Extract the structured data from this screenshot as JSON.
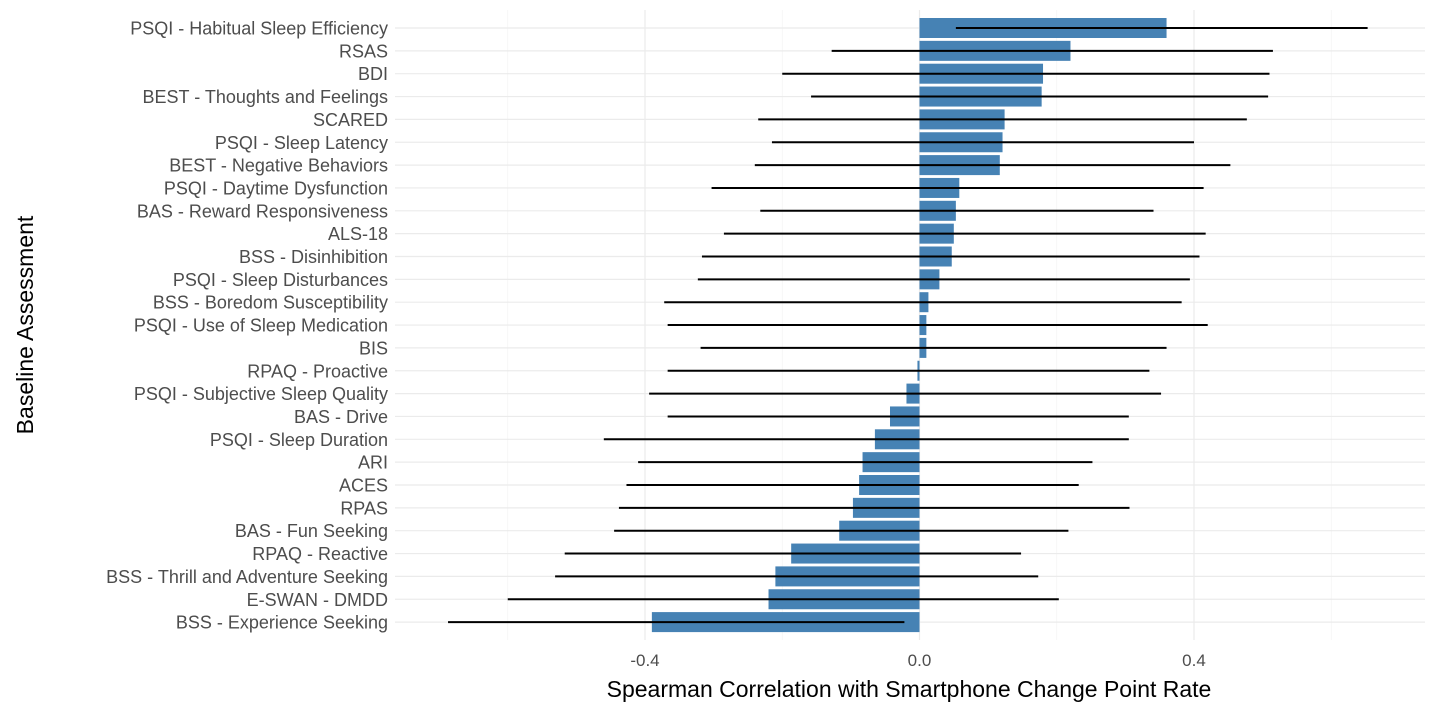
{
  "chart_data": {
    "type": "bar",
    "orientation": "horizontal",
    "xlabel": "Spearman Correlation with Smartphone Change Point Rate",
    "ylabel": "Baseline Assessment",
    "xlim": [
      -0.73,
      0.73
    ],
    "xticks": [
      -0.4,
      0.0,
      0.4
    ],
    "xtick_labels": [
      "-0.4",
      "0.0",
      "0.4"
    ],
    "bar_color": "#4682b4",
    "error_bar_color": "#000000",
    "grid": true,
    "categories": [
      "PSQI - Habitual Sleep Efficiency",
      "RSAS",
      "BDI",
      "BEST - Thoughts and Feelings",
      "SCARED",
      "PSQI - Sleep Latency",
      "BEST - Negative Behaviors",
      "PSQI - Daytime Dysfunction",
      "BAS - Reward Responsiveness",
      "ALS-18",
      "BSS - Disinhibition",
      "PSQI - Sleep Disturbances",
      "BSS - Boredom Susceptibility",
      "PSQI - Use of Sleep Medication",
      "BIS",
      "RPAQ - Proactive",
      "PSQI - Subjective Sleep Quality",
      "BAS - Drive",
      "PSQI - Sleep Duration",
      "ARI",
      "ACES",
      "RPAS",
      "BAS - Fun Seeking",
      "RPAQ - Reactive",
      "BSS - Thrill and Adventure Seeking",
      "E-SWAN - DMDD",
      "BSS - Experience Seeking"
    ],
    "values": [
      0.36,
      0.22,
      0.18,
      0.178,
      0.124,
      0.121,
      0.117,
      0.058,
      0.053,
      0.05,
      0.047,
      0.029,
      0.013,
      0.01,
      0.01,
      -0.003,
      -0.019,
      -0.043,
      -0.065,
      -0.083,
      -0.088,
      -0.097,
      -0.117,
      -0.187,
      -0.21,
      -0.22,
      -0.39
    ],
    "ci_lower": [
      0.053,
      -0.128,
      -0.2,
      -0.158,
      -0.235,
      -0.215,
      -0.24,
      -0.303,
      -0.232,
      -0.285,
      -0.317,
      -0.323,
      -0.372,
      -0.367,
      -0.319,
      -0.367,
      -0.394,
      -0.367,
      -0.46,
      -0.41,
      -0.427,
      -0.438,
      -0.445,
      -0.517,
      -0.531,
      -0.6,
      -0.687
    ],
    "ci_upper": [
      0.653,
      0.515,
      0.51,
      0.508,
      0.477,
      0.4,
      0.453,
      0.414,
      0.341,
      0.417,
      0.408,
      0.394,
      0.382,
      0.42,
      0.36,
      0.335,
      0.352,
      0.305,
      0.305,
      0.252,
      0.232,
      0.306,
      0.217,
      0.148,
      0.173,
      0.203,
      -0.022
    ]
  }
}
